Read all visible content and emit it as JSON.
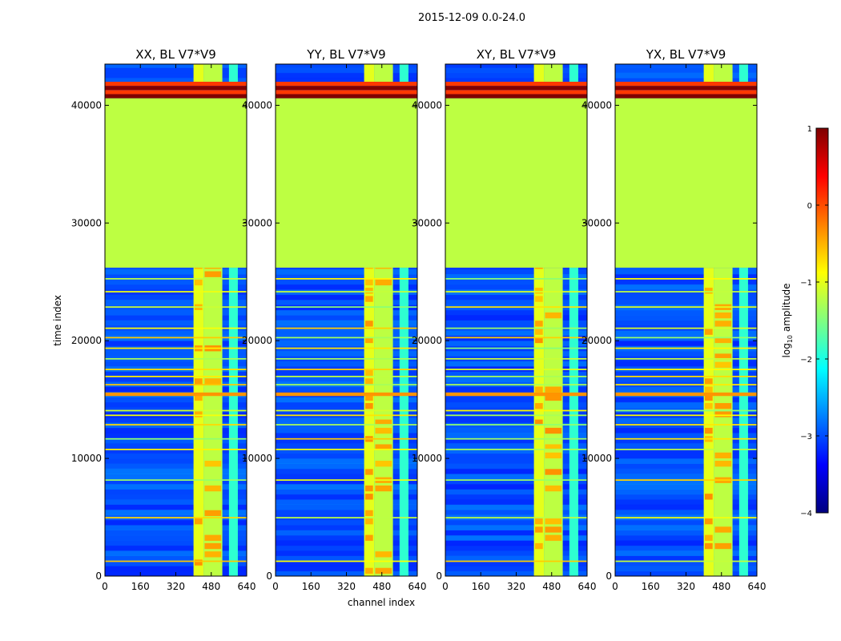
{
  "figure": {
    "suptitle": "2015-12-09 0.0-24.0",
    "xlabel": "channel index",
    "ylabel": "time index"
  },
  "colorbar": {
    "label": "log10 amplitude",
    "label_main": "log",
    "label_sub": "10",
    "label_rest": " amplitude",
    "ticks": [
      1,
      0,
      -1,
      -2,
      -3,
      -4
    ],
    "tick_labels": [
      "1",
      "0",
      "−1",
      "−2",
      "−3",
      "−4"
    ],
    "vmin": -4,
    "vmax": 1,
    "colormap": "jet",
    "stops": [
      "#00007f",
      "#0000ff",
      "#0080ff",
      "#00ffff",
      "#80ff80",
      "#ffff00",
      "#ff8000",
      "#ff0000",
      "#7f0000"
    ]
  },
  "chart_data": [
    {
      "type": "heatmap",
      "title": "XX, BL V7*V9",
      "xlim": [
        0,
        640
      ],
      "ylim": [
        0,
        43500
      ],
      "x_ticks": [
        0,
        160,
        320,
        480,
        640
      ],
      "y_ticks": [
        0,
        10000,
        20000,
        30000,
        40000
      ],
      "x_tick_labels": [
        "0",
        "160",
        "320",
        "480",
        "640"
      ],
      "y_tick_labels": [
        "0",
        "10000",
        "20000",
        "30000",
        "40000"
      ],
      "flagged_rows": [
        26200,
        40600
      ],
      "flagged_value_log10": -1.2,
      "saturated_rows": [
        40600,
        42000
      ],
      "bright_channel_bands": [
        [
          400,
          445
        ],
        [
          445,
          530
        ],
        [
          560,
          600
        ]
      ],
      "strong_rfi_rows": [
        15300,
        15600
      ]
    },
    {
      "type": "heatmap",
      "title": "YY, BL V7*V9",
      "xlim": [
        0,
        640
      ],
      "ylim": [
        0,
        43500
      ],
      "x_ticks": [
        0,
        160,
        320,
        480,
        640
      ],
      "y_ticks": [
        0,
        10000,
        20000,
        30000,
        40000
      ],
      "x_tick_labels": [
        "0",
        "160",
        "320",
        "480",
        "640"
      ],
      "y_tick_labels": [
        "0",
        "10000",
        "20000",
        "30000",
        "40000"
      ],
      "flagged_rows": [
        26200,
        40600
      ],
      "flagged_value_log10": -1.2,
      "saturated_rows": [
        40600,
        42000
      ],
      "bright_channel_bands": [
        [
          400,
          445
        ],
        [
          445,
          530
        ],
        [
          560,
          600
        ]
      ],
      "strong_rfi_rows": [
        15300,
        15600
      ]
    },
    {
      "type": "heatmap",
      "title": "XY, BL V7*V9",
      "xlim": [
        0,
        640
      ],
      "ylim": [
        0,
        43500
      ],
      "x_ticks": [
        0,
        160,
        320,
        480,
        640
      ],
      "y_ticks": [
        0,
        10000,
        20000,
        30000,
        40000
      ],
      "x_tick_labels": [
        "0",
        "160",
        "320",
        "480",
        "640"
      ],
      "y_tick_labels": [
        "0",
        "10000",
        "20000",
        "30000",
        "40000"
      ],
      "flagged_rows": [
        26200,
        40600
      ],
      "flagged_value_log10": -1.2,
      "saturated_rows": [
        40600,
        42000
      ],
      "bright_channel_bands": [
        [
          400,
          445
        ],
        [
          445,
          530
        ],
        [
          560,
          600
        ]
      ],
      "strong_rfi_rows": [
        15300,
        15600
      ]
    },
    {
      "type": "heatmap",
      "title": "YX, BL V7*V9",
      "xlim": [
        0,
        640
      ],
      "ylim": [
        0,
        43500
      ],
      "x_ticks": [
        0,
        160,
        320,
        480,
        640
      ],
      "y_ticks": [
        0,
        10000,
        20000,
        30000,
        40000
      ],
      "x_tick_labels": [
        "0",
        "160",
        "320",
        "480",
        "640"
      ],
      "y_tick_labels": [
        "0",
        "10000",
        "20000",
        "30000",
        "40000"
      ],
      "flagged_rows": [
        26200,
        40600
      ],
      "flagged_value_log10": -1.2,
      "saturated_rows": [
        40600,
        42000
      ],
      "bright_channel_bands": [
        [
          400,
          445
        ],
        [
          445,
          530
        ],
        [
          560,
          600
        ]
      ],
      "strong_rfi_rows": [
        15300,
        15600
      ]
    }
  ]
}
